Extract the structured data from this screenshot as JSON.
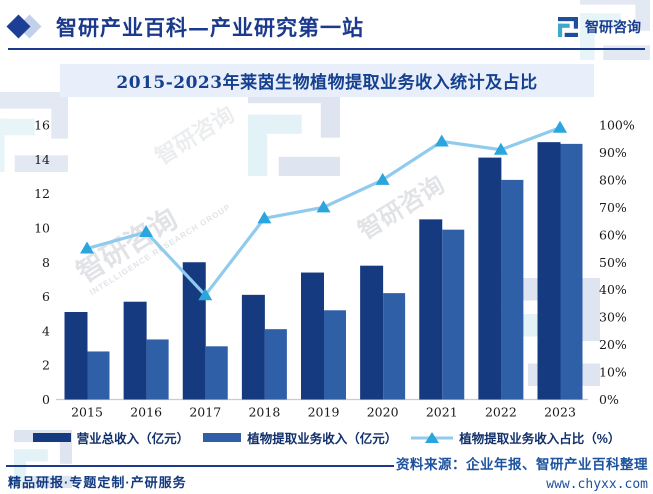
{
  "header": {
    "title": "智研产业百科—产业研究第一站",
    "logo_text": "智研咨询"
  },
  "chart": {
    "title": "2015-2023年莱茵生物植物提取业务收入统计及占比"
  },
  "chart_data": {
    "type": "bar",
    "title": "2015-2023年莱茵生物植物提取业务收入统计及占比",
    "categories": [
      "2015",
      "2016",
      "2017",
      "2018",
      "2019",
      "2020",
      "2021",
      "2022",
      "2023"
    ],
    "series": [
      {
        "name": "营业总收入（亿元）",
        "type": "bar",
        "axis": "left",
        "color": "#153a80",
        "values": [
          5.1,
          5.7,
          8.0,
          6.1,
          7.4,
          7.8,
          10.5,
          14.1,
          15.0
        ]
      },
      {
        "name": "植物提取业务收入（亿元）",
        "type": "bar",
        "axis": "left",
        "color": "#2f5fa7",
        "values": [
          2.8,
          3.5,
          3.1,
          4.1,
          5.2,
          6.2,
          9.9,
          12.8,
          14.9
        ]
      },
      {
        "name": "植物提取业务收入占比（%）",
        "type": "line",
        "axis": "right",
        "color": "#90cbee",
        "marker_color": "#2aa5de",
        "values": [
          55,
          61,
          38,
          66,
          70,
          80,
          94,
          91,
          99
        ]
      }
    ],
    "left_axis": {
      "min": 0,
      "max": 16,
      "step": 2
    },
    "right_axis": {
      "min": 0,
      "max": 100,
      "step": 10,
      "suffix": "%"
    },
    "grid": false,
    "legend_position": "bottom"
  },
  "footer": {
    "tagline": "精品研报·专题定制·产研服务",
    "source": "资料来源：企业年报、智研产业百科整理",
    "website": "www.chyxx.com"
  },
  "watermark": {
    "text": "智研咨询",
    "subtext": "INTELLIGENCE RESEARCH GROUP"
  }
}
